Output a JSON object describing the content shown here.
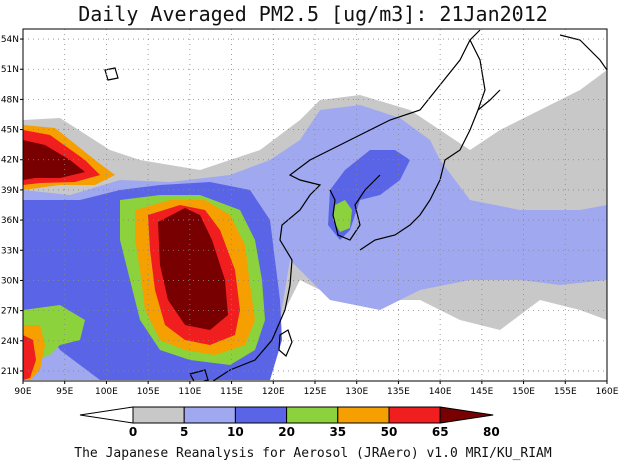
{
  "title": "Daily Averaged PM2.5 [ug/m3]: 21Jan2012",
  "footer": "The Japanese Reanalysis for Aerosol (JRAero) v1.0 MRI/KU_RIAM",
  "map": {
    "lon_range": [
      90,
      160
    ],
    "lat_range": [
      20,
      55
    ],
    "lon_ticks": [
      "90E",
      "95E",
      "100E",
      "105E",
      "110E",
      "115E",
      "120E",
      "125E",
      "130E",
      "135E",
      "140E",
      "145E",
      "150E",
      "155E",
      "160E"
    ],
    "lat_ticks": [
      "21N",
      "24N",
      "27N",
      "30N",
      "33N",
      "36N",
      "39N",
      "42N",
      "45N",
      "48N",
      "51N",
      "54N"
    ],
    "grid": "dotted"
  },
  "colorbar": {
    "labels": [
      "0",
      "5",
      "10",
      "20",
      "35",
      "50",
      "65",
      "80"
    ],
    "colors": [
      "#ffffff",
      "#c8c8c8",
      "#a0a8f0",
      "#5a64e6",
      "#8cd23c",
      "#f5a000",
      "#f01e1e",
      "#780000"
    ]
  }
}
